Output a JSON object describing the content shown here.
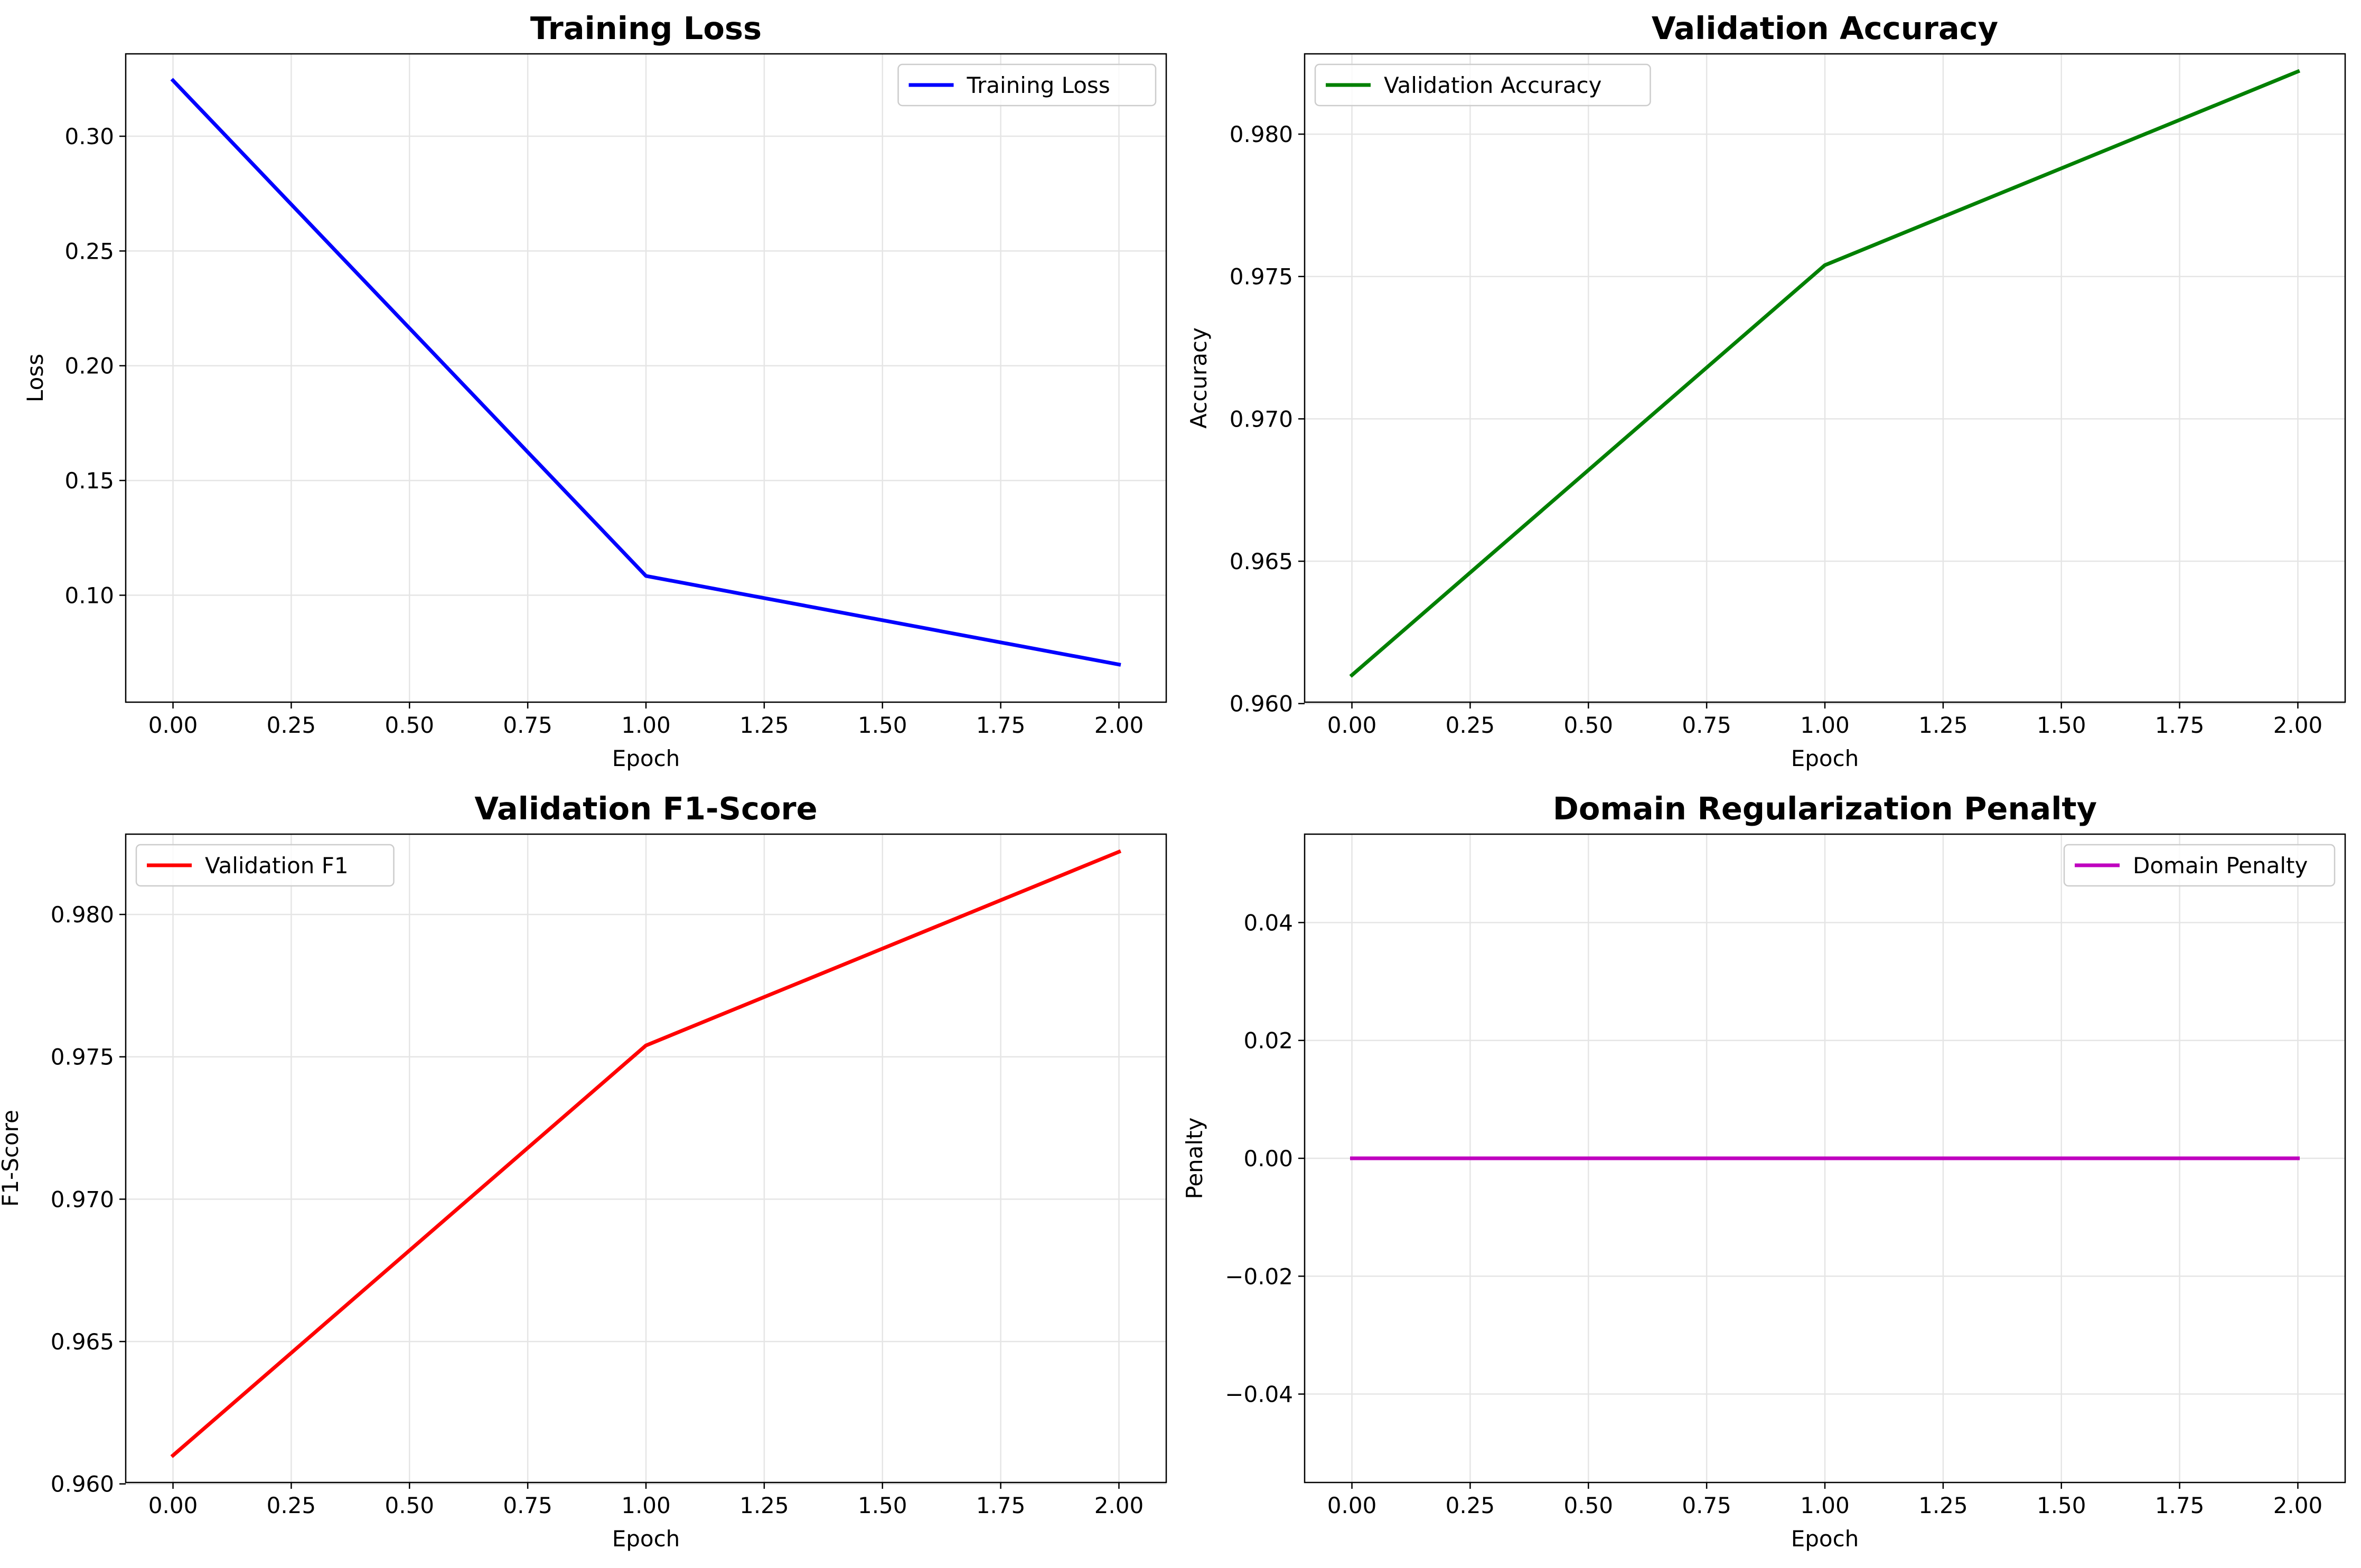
{
  "figure": {
    "background": "#ffffff",
    "grid": true
  },
  "chart_data": [
    {
      "type": "line",
      "title": "Training Loss",
      "xlabel": "Epoch",
      "ylabel": "Loss",
      "xlim": [
        -0.1,
        2.1
      ],
      "ylim": [
        0.0534,
        0.3359
      ],
      "xticks": [
        0,
        0.25,
        0.5,
        0.75,
        1,
        1.25,
        1.5,
        1.75,
        2
      ],
      "xtick_labels": [
        "0.00",
        "0.25",
        "0.50",
        "0.75",
        "1.00",
        "1.25",
        "1.50",
        "1.75",
        "2.00"
      ],
      "yticks": [
        0.1,
        0.15,
        0.2,
        0.25,
        0.3
      ],
      "ytick_labels": [
        "0.10",
        "0.15",
        "0.20",
        "0.25",
        "0.30"
      ],
      "legend_position": "top-right",
      "series": [
        {
          "name": "Training Loss",
          "color": "#0000ff",
          "x": [
            0,
            1,
            2
          ],
          "y": [
            0.3243,
            0.1084,
            0.0698
          ]
        }
      ]
    },
    {
      "type": "line",
      "title": "Validation Accuracy",
      "xlabel": "Epoch",
      "ylabel": "Accuracy",
      "xlim": [
        -0.1,
        2.1
      ],
      "ylim": [
        0.96005,
        0.98282
      ],
      "xticks": [
        0,
        0.25,
        0.5,
        0.75,
        1,
        1.25,
        1.5,
        1.75,
        2
      ],
      "xtick_labels": [
        "0.00",
        "0.25",
        "0.50",
        "0.75",
        "1.00",
        "1.25",
        "1.50",
        "1.75",
        "2.00"
      ],
      "yticks": [
        0.96,
        0.965,
        0.97,
        0.975,
        0.98
      ],
      "ytick_labels": [
        "0.960",
        "0.965",
        "0.970",
        "0.975",
        "0.980"
      ],
      "legend_position": "top-left",
      "series": [
        {
          "name": "Validation Accuracy",
          "color": "#008000",
          "x": [
            0,
            1,
            2
          ],
          "y": [
            0.961,
            0.9754,
            0.9822
          ]
        }
      ]
    },
    {
      "type": "line",
      "title": "Validation F1-Score",
      "xlabel": "Epoch",
      "ylabel": "F1-Score",
      "xlim": [
        -0.1,
        2.1
      ],
      "ylim": [
        0.96005,
        0.98282
      ],
      "xticks": [
        0,
        0.25,
        0.5,
        0.75,
        1,
        1.25,
        1.5,
        1.75,
        2
      ],
      "xtick_labels": [
        "0.00",
        "0.25",
        "0.50",
        "0.75",
        "1.00",
        "1.25",
        "1.50",
        "1.75",
        "2.00"
      ],
      "yticks": [
        0.96,
        0.965,
        0.97,
        0.975,
        0.98
      ],
      "ytick_labels": [
        "0.960",
        "0.965",
        "0.970",
        "0.975",
        "0.980"
      ],
      "legend_position": "top-left",
      "series": [
        {
          "name": "Validation F1",
          "color": "#ff0000",
          "x": [
            0,
            1,
            2
          ],
          "y": [
            0.961,
            0.9754,
            0.9822
          ]
        }
      ]
    },
    {
      "type": "line",
      "title": "Domain Regularization Penalty",
      "xlabel": "Epoch",
      "ylabel": "Penalty",
      "xlim": [
        -0.1,
        2.1
      ],
      "ylim": [
        -0.055,
        0.055
      ],
      "xticks": [
        0,
        0.25,
        0.5,
        0.75,
        1,
        1.25,
        1.5,
        1.75,
        2
      ],
      "xtick_labels": [
        "0.00",
        "0.25",
        "0.50",
        "0.75",
        "1.00",
        "1.25",
        "1.50",
        "1.75",
        "2.00"
      ],
      "yticks": [
        -0.04,
        -0.02,
        0,
        0.02,
        0.04
      ],
      "ytick_labels": [
        "−0.04",
        "−0.02",
        "0.00",
        "0.02",
        "0.04"
      ],
      "legend_position": "top-right",
      "series": [
        {
          "name": "Domain Penalty",
          "color": "#bf00bf",
          "x": [
            0,
            1,
            2
          ],
          "y": [
            0,
            0,
            0
          ]
        }
      ]
    }
  ]
}
